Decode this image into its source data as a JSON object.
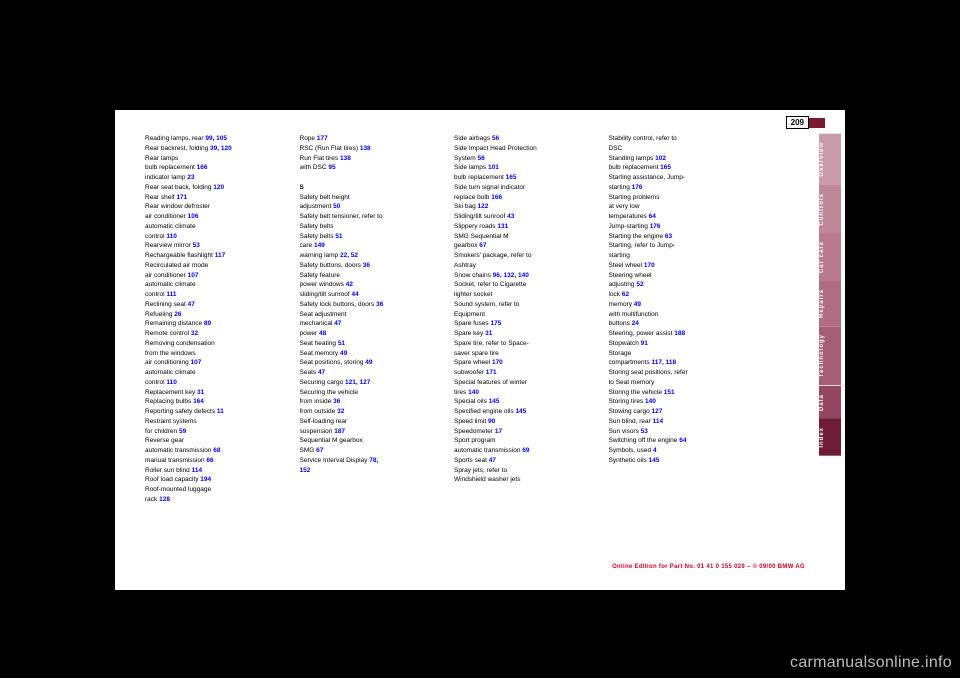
{
  "page_number": "209",
  "watermark": "carmanualsonline.info",
  "footer_red": "Online Edition for Part No. 01 41 0 155 029 – © 09/00 BMW AG",
  "tabs": [
    {
      "label": "Overview",
      "bg": "#c99aa7",
      "fg": "#ffffff"
    },
    {
      "label": "Controls",
      "bg": "#c08897",
      "fg": "#ffffff"
    },
    {
      "label": "Car care",
      "bg": "#b87a8c",
      "fg": "#ffffff"
    },
    {
      "label": "Repairs",
      "bg": "#b06d81",
      "fg": "#ffffff"
    },
    {
      "label": "Technology",
      "bg": "#a55e74",
      "fg": "#ffffff"
    },
    {
      "label": "Data",
      "bg": "#93465d",
      "fg": "#ffffff"
    },
    {
      "label": "Index",
      "bg": "#6d1b36",
      "fg": "#ffffff"
    }
  ],
  "columns": [
    [
      {
        "t": "Reading lamps, rear ",
        "r": "99, 105"
      },
      {
        "t": "Rear backrest, folding ",
        "r": "39, 120"
      },
      {
        "t": "Rear lamps"
      },
      {
        "t": "    bulb replacement ",
        "r": "166"
      },
      {
        "t": "    indicator lamp ",
        "r": "23"
      },
      {
        "t": "Rear seat back, folding ",
        "r": "120"
      },
      {
        "t": "Rear shelf ",
        "r": "171"
      },
      {
        "t": "Rear window defroster"
      },
      {
        "t": "    air conditioner ",
        "r": "106"
      },
      {
        "t": "    automatic climate"
      },
      {
        "t": "      control ",
        "r": "110"
      },
      {
        "t": "Rearview mirror ",
        "r": "53"
      },
      {
        "t": "Rechargeable flashlight ",
        "r": "117"
      },
      {
        "t": "Recirculated air mode"
      },
      {
        "t": "    air conditioner ",
        "r": "107"
      },
      {
        "t": "    automatic climate"
      },
      {
        "t": "      control ",
        "r": "111"
      },
      {
        "t": "Reclining seat ",
        "r": "47"
      },
      {
        "t": "Refueling ",
        "r": "26"
      },
      {
        "t": "Remaining distance ",
        "r": "89"
      },
      {
        "t": "Remote control ",
        "r": "32"
      },
      {
        "t": "Removing condensation"
      },
      {
        "t": "  from the windows"
      },
      {
        "t": "    air conditioning ",
        "r": "107"
      },
      {
        "t": "    automatic climate"
      },
      {
        "t": "      control ",
        "r": "110"
      },
      {
        "t": "Replacement key ",
        "r": "31"
      },
      {
        "t": "Replacing bulbs ",
        "r": "164"
      },
      {
        "t": "Reporting safety defects ",
        "r": "11"
      },
      {
        "t": "Restraint systems"
      },
      {
        "t": "    for children ",
        "r": "59"
      },
      {
        "t": "Reverse gear"
      },
      {
        "t": "    automatic transmission ",
        "r": "68"
      },
      {
        "t": "    manual transmission ",
        "r": "66"
      },
      {
        "t": "Roller sun blind ",
        "r": "114"
      },
      {
        "t": "Roof load capacity ",
        "r": "194"
      },
      {
        "t": "Roof-mounted luggage"
      },
      {
        "t": "  rack ",
        "r": "128"
      }
    ],
    [
      {
        "t": "Rope ",
        "r": "177"
      },
      {
        "t": "RSC (Run Flat tires) ",
        "r": "138"
      },
      {
        "t": "Run Flat tires ",
        "r": "138"
      },
      {
        "t": "    with DSC ",
        "r": "95"
      },
      {
        "t": ""
      },
      {
        "t": "S",
        "bold": true
      },
      {
        "t": "Safety belt height"
      },
      {
        "t": "  adjustment ",
        "r": "50"
      },
      {
        "t": "Safety belt tensioner, refer to"
      },
      {
        "t": "  Safety belts"
      },
      {
        "t": "Safety belts ",
        "r": "51"
      },
      {
        "t": "    care ",
        "r": "149"
      },
      {
        "t": "    warning lamp ",
        "r": "22, 52"
      },
      {
        "t": "Safety buttons, doors ",
        "r": "36"
      },
      {
        "t": "Safety feature"
      },
      {
        "t": "    power windows ",
        "r": "42"
      },
      {
        "t": "    sliding/tilt sunroof ",
        "r": "44"
      },
      {
        "t": "Safety lock buttons, doors ",
        "r": "36"
      },
      {
        "t": "Seat adjustment"
      },
      {
        "t": "    mechanical ",
        "r": "47"
      },
      {
        "t": "    power ",
        "r": "48"
      },
      {
        "t": "Seat heating ",
        "r": "51"
      },
      {
        "t": "Seat memory ",
        "r": "49"
      },
      {
        "t": "Seat positions, storing ",
        "r": "49"
      },
      {
        "t": "Seats ",
        "r": "47"
      },
      {
        "t": "Securing cargo ",
        "r": "121, 127"
      },
      {
        "t": "Securing the vehicle"
      },
      {
        "t": "    from inside ",
        "r": "36"
      },
      {
        "t": "    from outside ",
        "r": "32"
      },
      {
        "t": "Self-loading rear"
      },
      {
        "t": "  suspension ",
        "r": "187"
      },
      {
        "t": "Sequential M gearbox"
      },
      {
        "t": "  SMG ",
        "r": "67"
      },
      {
        "t": "Service Interval Display ",
        "r": "78,"
      },
      {
        "t": "  ",
        "r": "152"
      }
    ],
    [
      {
        "t": "Side airbags ",
        "r": "56"
      },
      {
        "t": "Side Impact Head Protection"
      },
      {
        "t": "  System ",
        "r": "56"
      },
      {
        "t": "Side lamps ",
        "r": "101"
      },
      {
        "t": "    bulb replacement ",
        "r": "165"
      },
      {
        "t": "Side turn signal indicator"
      },
      {
        "t": "    replace bulb ",
        "r": "166"
      },
      {
        "t": "Ski bag ",
        "r": "122"
      },
      {
        "t": "Sliding/tilt sunroof ",
        "r": "43"
      },
      {
        "t": "Slippery roads ",
        "r": "131"
      },
      {
        "t": "SMG Sequential M"
      },
      {
        "t": "  gearbox ",
        "r": "67"
      },
      {
        "t": "Smokers' package, refer to"
      },
      {
        "t": "  Ashtray"
      },
      {
        "t": "Snow chains ",
        "r": "96, 132, 140"
      },
      {
        "t": "Socket, refer to Cigarette"
      },
      {
        "t": "  lighter socket"
      },
      {
        "t": "Sound system, refer to"
      },
      {
        "t": "  Equipment"
      },
      {
        "t": "Spare fuses ",
        "r": "175"
      },
      {
        "t": "Spare key ",
        "r": "31"
      },
      {
        "t": "Spare tire, refer to Space-"
      },
      {
        "t": "  saver spare tire"
      },
      {
        "t": "Spare wheel ",
        "r": "170"
      },
      {
        "t": "    subwoofer ",
        "r": "171"
      },
      {
        "t": "Special features of winter"
      },
      {
        "t": "  tires ",
        "r": "140"
      },
      {
        "t": "Special oils ",
        "r": "145"
      },
      {
        "t": "Specified engine oils ",
        "r": "145"
      },
      {
        "t": "Speed limit ",
        "r": "90"
      },
      {
        "t": "Speedometer ",
        "r": "17"
      },
      {
        "t": "Sport program"
      },
      {
        "t": "    automatic transmission ",
        "r": "69"
      },
      {
        "t": "Sports seat ",
        "r": "47"
      },
      {
        "t": "Spray jets, refer to"
      },
      {
        "t": "  Windshield washer jets"
      }
    ],
    [
      {
        "t": "Stability control, refer to"
      },
      {
        "t": "  DSC"
      },
      {
        "t": "Standing lamps ",
        "r": "102"
      },
      {
        "t": "    bulb replacement ",
        "r": "165"
      },
      {
        "t": "Starting assistance, Jump-"
      },
      {
        "t": "  starting ",
        "r": "176"
      },
      {
        "t": "Starting problems"
      },
      {
        "t": "    at very low"
      },
      {
        "t": "      temperatures ",
        "r": "64"
      },
      {
        "t": "    Jump-starting ",
        "r": "176"
      },
      {
        "t": "Starting the engine ",
        "r": "63"
      },
      {
        "t": "Starting, refer to Jump-"
      },
      {
        "t": "  starting"
      },
      {
        "t": "Steel wheel ",
        "r": "170"
      },
      {
        "t": "Steering wheel"
      },
      {
        "t": "    adjusting ",
        "r": "52"
      },
      {
        "t": "    lock ",
        "r": "62"
      },
      {
        "t": "    memory ",
        "r": "49"
      },
      {
        "t": "    with multifunction"
      },
      {
        "t": "      buttons ",
        "r": "24"
      },
      {
        "t": "Steering, power assist ",
        "r": "188"
      },
      {
        "t": "Stopwatch ",
        "r": "91"
      },
      {
        "t": "Storage"
      },
      {
        "t": "  compartments ",
        "r": "117, 118"
      },
      {
        "t": "Storing seat positions, refer"
      },
      {
        "t": "  to Seat memory"
      },
      {
        "t": "Storing the vehicle ",
        "r": "151"
      },
      {
        "t": "Storing tires ",
        "r": "140"
      },
      {
        "t": "Stowing cargo ",
        "r": "127"
      },
      {
        "t": "Sun blind, rear ",
        "r": "114"
      },
      {
        "t": "Sun visors ",
        "r": "53"
      },
      {
        "t": "Switching off the engine ",
        "r": "64"
      },
      {
        "t": "Symbols, used ",
        "r": "4"
      },
      {
        "t": "Synthetic oils ",
        "r": "145"
      }
    ]
  ]
}
